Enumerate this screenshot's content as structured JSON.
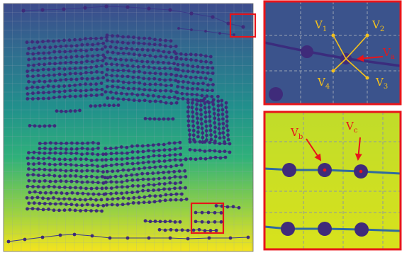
{
  "top_labels": [
    {
      "main": "V",
      "sub": "1"
    },
    {
      "main": "V",
      "sub": "2"
    },
    {
      "main": "V",
      "sub": "a"
    },
    {
      "main": "V",
      "sub": "4"
    },
    {
      "main": "V",
      "sub": "3"
    }
  ],
  "bottom_labels": [
    {
      "main": "V",
      "sub": "b"
    },
    {
      "main": "V",
      "sub": "c"
    }
  ],
  "colors": {
    "frame": "#e8151a",
    "node": "#3f2b7a",
    "line": "#3b3a8a",
    "callout_line": "#f4c11c",
    "callout_text": "#f4c11c",
    "pointer": "#e8151a",
    "grid": "#8e97a8"
  }
}
